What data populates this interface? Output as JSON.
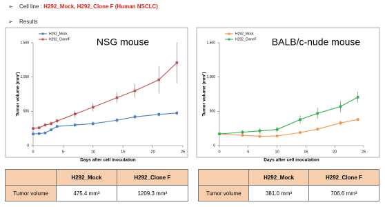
{
  "cell_line": {
    "label": "Cell line :",
    "value": "H292_Mock, H292_Clone F (Human NSCLC)"
  },
  "results": "Results",
  "chart_data": [
    {
      "type": "line",
      "title": "NSG mouse",
      "y_label": "Tumor volume (mm³)",
      "x_label": "Days after cell inoculation",
      "x": [
        0,
        1,
        2,
        3,
        4,
        7,
        10,
        14,
        17,
        21,
        24
      ],
      "series": [
        {
          "name": "H292_Mock",
          "color": "#4a7ebb",
          "values": [
            170,
            175,
            185,
            230,
            280,
            300,
            320,
            370,
            420,
            455,
            475.4
          ],
          "errors": [
            10,
            10,
            10,
            15,
            20,
            30,
            30,
            30,
            30,
            30,
            30
          ]
        },
        {
          "name": "H292_CloneF",
          "color": "#c0504d",
          "values": [
            250,
            260,
            300,
            320,
            360,
            460,
            560,
            700,
            800,
            960,
            1209.3
          ],
          "errors": [
            20,
            20,
            25,
            30,
            30,
            50,
            60,
            80,
            100,
            200,
            300
          ]
        }
      ],
      "xlim": [
        0,
        25
      ],
      "xticks": [
        0,
        5,
        10,
        15,
        20,
        25
      ],
      "ylim": [
        0,
        1500
      ],
      "yticks": [
        0,
        500,
        {
          "value": 1000,
          "label": "1,000"
        },
        {
          "value": 1500,
          "label": "1,500"
        }
      ],
      "legend": "upper left"
    },
    {
      "type": "line",
      "title": "BALB/c-nude mouse",
      "y_label": "Tumor volume (mm³)",
      "x_label": "Days after cell inoculation",
      "x": [
        0,
        4,
        7,
        10,
        14,
        17,
        21,
        24
      ],
      "series": [
        {
          "name": "H292_Mock",
          "color": "#f79646",
          "values": [
            170,
            150,
            135,
            140,
            190,
            240,
            330,
            381.0
          ],
          "errors": [
            10,
            15,
            20,
            15,
            20,
            20,
            30,
            20
          ]
        },
        {
          "name": "H292_CloneF",
          "color": "#2cb34a",
          "values": [
            170,
            195,
            215,
            235,
            380,
            470,
            570,
            706.6
          ],
          "errors": [
            20,
            30,
            40,
            40,
            60,
            80,
            80,
            80
          ]
        }
      ],
      "xlim": [
        0,
        25
      ],
      "xticks": [
        0,
        5,
        10,
        15,
        20,
        25
      ],
      "ylim": [
        0,
        1500
      ],
      "yticks": [
        0,
        500,
        {
          "value": 1000,
          "label": "1,000"
        },
        {
          "value": 1500,
          "label": "1,500"
        }
      ],
      "legend": "upper left"
    }
  ],
  "tables": [
    {
      "columns": [
        "H292_Mock",
        "H292_Clone F"
      ],
      "row_label": "Tumor volume",
      "cells": [
        "475.4 mm³",
        "1209.3 mm³"
      ]
    },
    {
      "columns": [
        "H292_Mock",
        "H292_Clone F"
      ],
      "row_label": "Tumor volume",
      "cells": [
        "381.0 mm³",
        "706.6 mm³"
      ]
    }
  ]
}
